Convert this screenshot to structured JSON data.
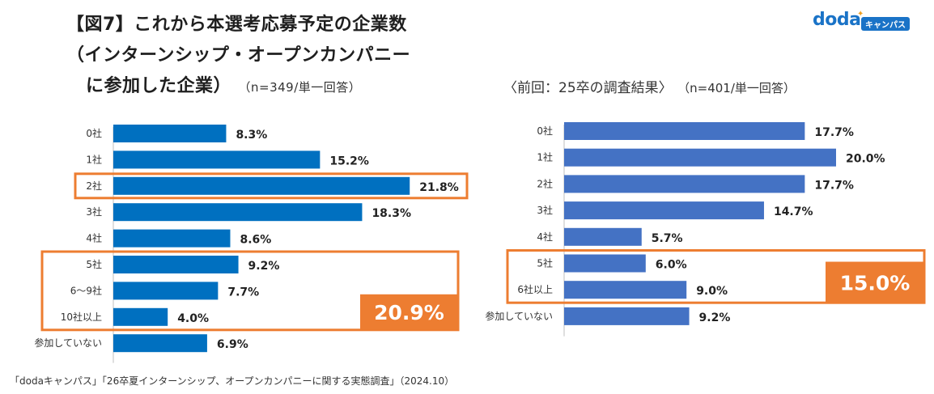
{
  "title": {
    "line1": "【図7】これから本選考応募予定の企業数",
    "line2": "（インターンシップ・オープンカンパニー",
    "line3": "に参加した企業）",
    "note": "（n=349/単一回答）"
  },
  "prev_title": {
    "label": "〈前回：25卒の調査結果〉",
    "note": "（n=401/単一回答）"
  },
  "logo": {
    "text": "doda",
    "badge": "キャンパス"
  },
  "footnote": "「dodaキャンパス」「26卒夏インターンシップ、オープンカンパニーに関する実態調査」（2024.10）",
  "colors": {
    "current_bar": "#0070c0",
    "previous_bar": "#4472c4",
    "highlight": "#ed7d31"
  },
  "chart_data": [
    {
      "type": "bar",
      "orientation": "horizontal",
      "title": "【図7】これから本選考応募予定の企業数（インターンシップ・オープンカンパニーに参加した企業）",
      "n_note": "（n=349/単一回答）",
      "categories": [
        "0社",
        "1社",
        "2社",
        "3社",
        "4社",
        "5社",
        "6～9社",
        "10社以上",
        "参加していない"
      ],
      "values": [
        8.3,
        15.2,
        21.8,
        18.3,
        8.6,
        9.2,
        7.7,
        4.0,
        6.9
      ],
      "value_labels": [
        "8.3%",
        "15.2%",
        "21.8%",
        "18.3%",
        "8.6%",
        "9.2%",
        "7.7%",
        "4.0%",
        "6.9%"
      ],
      "unit": "%",
      "highlighted_category": "2社",
      "group_highlight": {
        "categories": [
          "5社",
          "6～9社",
          "10社以上"
        ],
        "label": "20.9%",
        "value": 20.9
      }
    },
    {
      "type": "bar",
      "orientation": "horizontal",
      "title": "〈前回：25卒の調査結果〉",
      "n_note": "（n=401/単一回答）",
      "categories": [
        "0社",
        "1社",
        "2社",
        "3社",
        "4社",
        "5社",
        "6社以上",
        "参加していない"
      ],
      "values": [
        17.7,
        20.0,
        17.7,
        14.7,
        5.7,
        6.0,
        9.0,
        9.2
      ],
      "value_labels": [
        "17.7%",
        "20.0%",
        "17.7%",
        "14.7%",
        "5.7%",
        "6.0%",
        "9.0%",
        "9.2%"
      ],
      "unit": "%",
      "group_highlight": {
        "categories": [
          "5社",
          "6社以上"
        ],
        "label": "15.0%",
        "value": 15.0
      }
    }
  ]
}
